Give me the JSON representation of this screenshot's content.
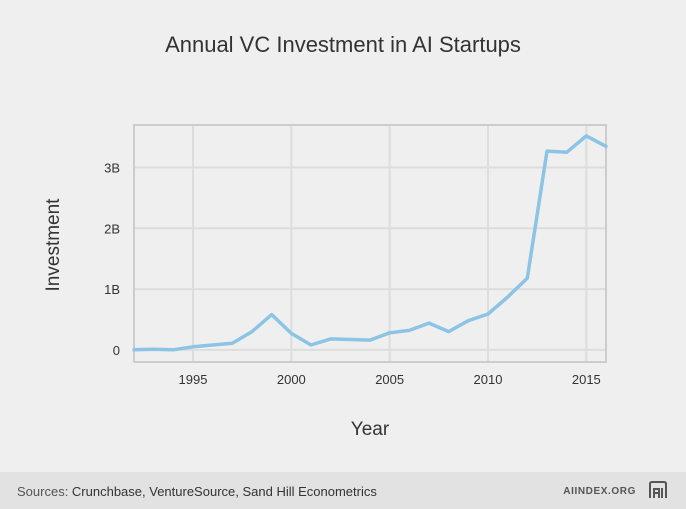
{
  "colors": {
    "line": "#8cc4e6",
    "grid": "#dddddd",
    "frame": "#cccccc",
    "text": "#333333"
  },
  "chart_data": {
    "type": "line",
    "title": "Annual VC Investment in AI Startups",
    "xlabel": "Year",
    "ylabel": "Investment",
    "x_ticks": [
      1995,
      2000,
      2005,
      2010,
      2015
    ],
    "y_ticks": [
      {
        "value": 0,
        "label": "0"
      },
      {
        "value": 1,
        "label": "1B"
      },
      {
        "value": 2,
        "label": "2B"
      },
      {
        "value": 3,
        "label": "3B"
      }
    ],
    "xlim": [
      1992,
      2016
    ],
    "ylim_billions": [
      -0.2,
      3.7
    ],
    "grid": true,
    "series": [
      {
        "x": [
          1992,
          1993,
          1994,
          1995,
          1996,
          1997,
          1998,
          1999,
          2000,
          2001,
          2002,
          2003,
          2004,
          2005,
          2006,
          2007,
          2008,
          2009,
          2010,
          2011,
          2012,
          2013,
          2014,
          2015,
          2016
        ],
        "y": [
          0.0,
          0.01,
          0.0,
          0.05,
          0.08,
          0.11,
          0.3,
          0.58,
          0.27,
          0.08,
          0.18,
          0.17,
          0.16,
          0.28,
          0.32,
          0.44,
          0.3,
          0.48,
          0.59,
          0.87,
          1.18,
          3.27,
          3.25,
          3.52,
          3.35
        ]
      }
    ]
  },
  "footer": {
    "sources_prefix": "Sources: ",
    "sources_text": "Crunchbase, VentureSource, Sand Hill Econometrics",
    "site": "AIINDEX.ORG",
    "logo_icon": "ai-index-logo-icon"
  }
}
